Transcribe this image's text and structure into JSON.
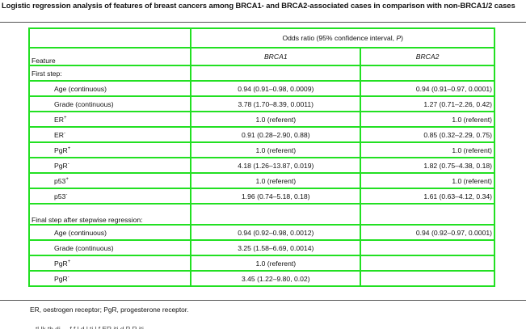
{
  "title": "Logistic regression analysis of features of breast cancers among BRCA1- and BRCA2-associated cases in comparison with non-BRCA1/2 cases",
  "header": {
    "group": "Odds ratio (95% confidence interval, ",
    "group_p": "P",
    "group_end": ")",
    "feature": "Feature",
    "brca1": "BRCA1",
    "brca2": "BRCA2"
  },
  "sections": {
    "first": "First step:",
    "final": "Final step after stepwise regression:"
  },
  "rows_first": [
    {
      "name": "Age (continuous)",
      "sup": "",
      "brca1": "0.94 (0.91–0.98, 0.0009)",
      "brca2": "0.94 (0.91–0.97, 0.0001)"
    },
    {
      "name": "Grade (continuous)",
      "sup": "",
      "brca1": "3.78 (1.70–8.39, 0.0011)",
      "brca2": "1.27 (0.71–2.26, 0.42)"
    },
    {
      "name": "ER",
      "sup": "+",
      "brca1": "1.0 (referent)",
      "brca2": "1.0 (referent)"
    },
    {
      "name": "ER",
      "sup": "-",
      "brca1": "0.91 (0.28–2.90, 0.88)",
      "brca2": "0.85 (0.32–2.29, 0.75)"
    },
    {
      "name": "PgR",
      "sup": "+",
      "brca1": "1.0 (referent)",
      "brca2": "1.0 (referent)"
    },
    {
      "name": "PgR",
      "sup": "-",
      "brca1": "4.18 (1.26–13.87, 0.019)",
      "brca2": "1.82 (0.75–4.38, 0.18)"
    },
    {
      "name": "p53",
      "sup": "+",
      "brca1": "1.0 (referent)",
      "brca2": "1.0 (referent)"
    },
    {
      "name": "p53",
      "sup": "-",
      "brca1": "1.96 (0.74–5.18, 0.18)",
      "brca2": "1.61 (0.63–4.12, 0.34)"
    }
  ],
  "rows_final": [
    {
      "name": "Age (continuous)",
      "sup": "",
      "brca1": "0.94 (0.92–0.98, 0.0012)",
      "brca2": "0.94 (0.92–0.97, 0.0001)"
    },
    {
      "name": "Grade (continuous)",
      "sup": "",
      "brca1": "3.25 (1.58–6.69, 0.0014)",
      "brca2": ""
    },
    {
      "name": "PgR",
      "sup": "+",
      "brca1": "1.0 (referent)",
      "brca2": ""
    },
    {
      "name": "PgR",
      "sup": "-",
      "brca1": "3.45 (1.22–9.80, 0.02)",
      "brca2": ""
    }
  ],
  "footnote": "ER, oestrogen receptor; PgR, progesterone receptor.",
  "cut_text": "...tl  lk  th  di  ...  f  f  l  d  l  ti  l  f  ER  iti  d  P  R  iti"
}
